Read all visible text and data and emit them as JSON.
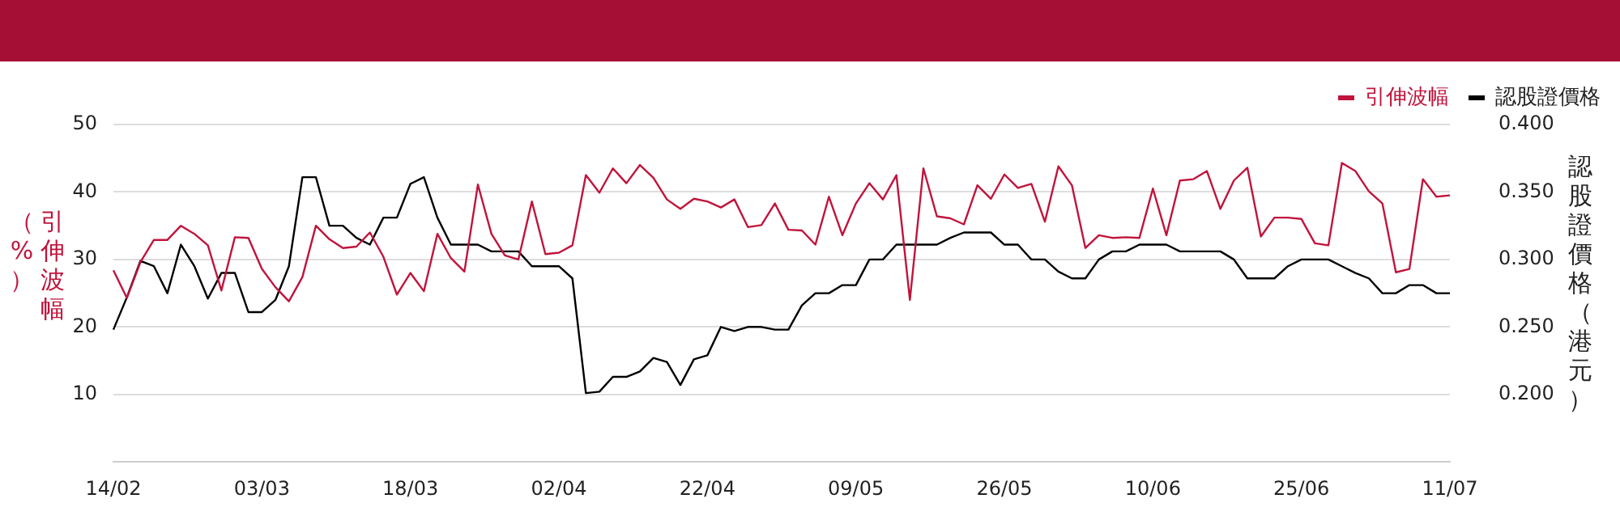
{
  "chart_data": {
    "type": "line",
    "categories": [
      "14/02",
      null,
      null,
      null,
      null,
      null,
      null,
      null,
      null,
      null,
      null,
      "03/03",
      null,
      null,
      null,
      null,
      null,
      null,
      null,
      null,
      null,
      null,
      "18/03",
      null,
      null,
      null,
      null,
      null,
      null,
      null,
      null,
      null,
      null,
      "02/04",
      null,
      null,
      null,
      null,
      null,
      null,
      null,
      null,
      null,
      null,
      "22/04",
      null,
      null,
      null,
      null,
      null,
      null,
      null,
      null,
      null,
      null,
      "09/05",
      null,
      null,
      null,
      null,
      null,
      null,
      null,
      null,
      null,
      null,
      "26/05",
      null,
      null,
      null,
      null,
      null,
      null,
      null,
      null,
      null,
      null,
      "10/06",
      null,
      null,
      null,
      null,
      null,
      null,
      null,
      null,
      null,
      null,
      "25/06",
      null,
      null,
      null,
      null,
      null,
      null,
      null,
      null,
      null,
      null,
      "11/07"
    ],
    "series": [
      {
        "name": "引伸波幅",
        "color": "#c0143c",
        "values": [
          28.4,
          24.3,
          29.6,
          32.9,
          32.9,
          35.0,
          33.8,
          32.1,
          25.4,
          33.3,
          33.2,
          28.6,
          25.9,
          23.8,
          27.4,
          35.0,
          33.0,
          31.7,
          31.9,
          34.0,
          30.4,
          24.8,
          28.0,
          25.3,
          33.8,
          30.2,
          28.2,
          41.1,
          33.8,
          30.6,
          30.0,
          38.6,
          30.8,
          31.0,
          32.1,
          42.5,
          39.9,
          43.5,
          41.3,
          44.0,
          42.1,
          38.9,
          37.5,
          39.0,
          38.6,
          37.7,
          38.9,
          34.8,
          35.1,
          38.3,
          34.4,
          34.3,
          32.2,
          39.3,
          33.6,
          38.3,
          41.3,
          38.9,
          42.5,
          24.0,
          43.5,
          36.4,
          36.1,
          35.2,
          41.0,
          39.0,
          42.6,
          40.6,
          41.2,
          35.6,
          43.8,
          41.0,
          31.7,
          33.6,
          33.2,
          33.3,
          33.2,
          40.5,
          33.6,
          41.7,
          41.9,
          43.1,
          37.5,
          41.7,
          43.6,
          33.4,
          36.2,
          36.2,
          36.0,
          32.4,
          32.1,
          44.3,
          43.1,
          40.1,
          38.3,
          28.1,
          28.6,
          41.9,
          39.3,
          39.5
        ]
      },
      {
        "name": "認股證價格",
        "color": "#000000",
        "axis": "y2",
        "values": [
          0.248,
          0.272,
          0.299,
          0.295,
          0.275,
          0.311,
          0.295,
          0.271,
          0.29,
          0.29,
          0.261,
          0.261,
          0.27,
          0.295,
          0.361,
          0.361,
          0.325,
          0.325,
          0.316,
          0.311,
          0.331,
          0.331,
          0.356,
          0.361,
          0.331,
          0.311,
          0.311,
          0.311,
          0.306,
          0.306,
          0.306,
          0.295,
          0.295,
          0.295,
          0.286,
          0.201,
          0.202,
          0.213,
          0.213,
          0.217,
          0.227,
          0.224,
          0.207,
          0.226,
          0.229,
          0.25,
          0.247,
          0.25,
          0.25,
          0.248,
          0.248,
          0.266,
          0.275,
          0.275,
          0.281,
          0.281,
          0.3,
          0.3,
          0.311,
          0.311,
          0.311,
          0.311,
          0.316,
          0.32,
          0.32,
          0.32,
          0.311,
          0.311,
          0.3,
          0.3,
          0.291,
          0.286,
          0.286,
          0.3,
          0.306,
          0.306,
          0.311,
          0.311,
          0.311,
          0.306,
          0.306,
          0.306,
          0.306,
          0.3,
          0.286,
          0.286,
          0.286,
          0.295,
          0.3,
          0.3,
          0.3,
          0.295,
          0.29,
          0.286,
          0.275,
          0.275,
          0.281,
          0.281,
          0.275,
          0.275
        ]
      }
    ],
    "ylabel": "引伸波幅（%）",
    "y2label": "認股證價格（港元）",
    "ylim": [
      0,
      50
    ],
    "yticks": [
      10,
      20,
      30,
      40,
      50
    ],
    "y2lim": [
      0.15,
      0.4
    ],
    "y2ticks": [
      {
        "value": 0.2,
        "label": "0.200"
      },
      {
        "value": 0.25,
        "label": "0.250"
      },
      {
        "value": 0.3,
        "label": "0.300"
      },
      {
        "value": 0.35,
        "label": "0.350"
      },
      {
        "value": 0.4,
        "label": "0.400"
      }
    ],
    "grid": "y",
    "legend": "top right",
    "marker": "none"
  }
}
